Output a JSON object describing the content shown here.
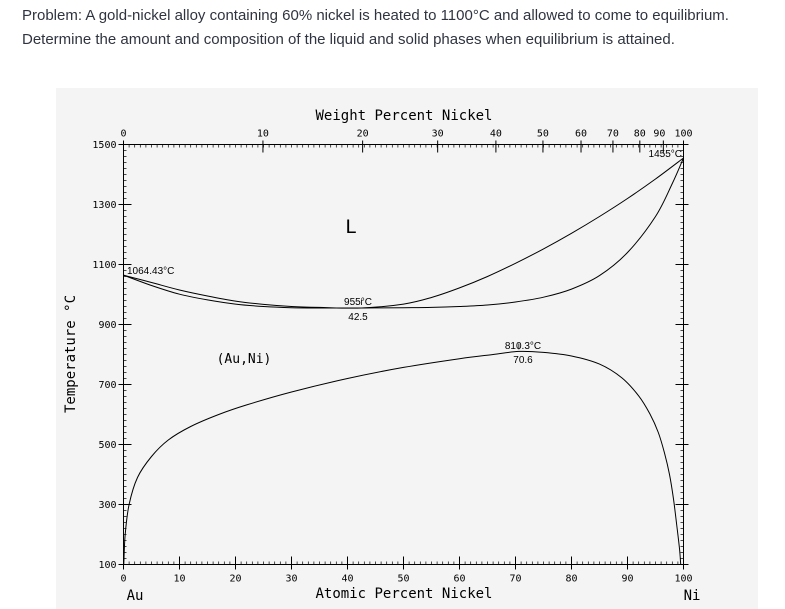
{
  "problem": {
    "line1": "Problem: A gold-nickel alloy containing 60% nickel is heated to 1100°C and allowed to come to equilibrium.",
    "line2": "Determine the amount and composition of the liquid and solid phases when equilibrium is attained."
  },
  "chart_data": {
    "type": "phase-diagram",
    "title": "Weight Percent Nickel",
    "xlabel": "Atomic Percent Nickel",
    "ylabel": "Temperature °C",
    "x_ticks_atomic": [
      "0",
      "10",
      "20",
      "30",
      "40",
      "50",
      "60",
      "70",
      "80",
      "90",
      "100"
    ],
    "x_ticks_weight": [
      "0",
      "10",
      "20",
      "30",
      "40",
      "50",
      "60",
      "70",
      "80",
      "90",
      "100"
    ],
    "x_ticks_weight_at": [
      0,
      24.9,
      42.7,
      56.1,
      66.5,
      74.9,
      81.7,
      87.4,
      92.2,
      96.4,
      100
    ],
    "y_ticks": [
      "1500",
      "1300",
      "1100",
      "900",
      "700",
      "500",
      "300",
      "100"
    ],
    "xlim": [
      0,
      100
    ],
    "ylim": [
      100,
      1500
    ],
    "endpoint_left": "Au",
    "endpoint_right": "Ni",
    "phase_labels": {
      "liquid": "L",
      "solid": "(Au,Ni)"
    },
    "annotations": {
      "au_melting": "1064.43°C",
      "ni_melting": "1455°C",
      "minimum_temp": "955°C",
      "minimum_comp": "42.5",
      "gap_max_temp": "810.3°C",
      "gap_max_comp": "70.6"
    },
    "series": [
      {
        "name": "liquidus",
        "points": [
          [
            0,
            1064.43
          ],
          [
            5,
            1040
          ],
          [
            10,
            1015
          ],
          [
            15,
            995
          ],
          [
            20,
            978
          ],
          [
            25,
            967
          ],
          [
            30,
            960
          ],
          [
            35,
            957
          ],
          [
            42.5,
            955
          ],
          [
            50,
            968
          ],
          [
            55,
            990
          ],
          [
            60,
            1022
          ],
          [
            65,
            1060
          ],
          [
            70,
            1104
          ],
          [
            75,
            1152
          ],
          [
            80,
            1204
          ],
          [
            85,
            1260
          ],
          [
            90,
            1320
          ],
          [
            95,
            1385
          ],
          [
            100,
            1455
          ]
        ]
      },
      {
        "name": "solidus",
        "points": [
          [
            0,
            1064.43
          ],
          [
            5,
            1030
          ],
          [
            10,
            1001
          ],
          [
            15,
            982
          ],
          [
            20,
            968
          ],
          [
            25,
            960
          ],
          [
            30,
            956
          ],
          [
            35,
            955
          ],
          [
            42.5,
            955
          ],
          [
            50,
            956
          ],
          [
            55,
            957
          ],
          [
            60,
            960
          ],
          [
            65,
            965
          ],
          [
            70,
            975
          ],
          [
            75,
            991
          ],
          [
            80,
            1018
          ],
          [
            85,
            1063
          ],
          [
            90,
            1140
          ],
          [
            95,
            1260
          ],
          [
            98,
            1370
          ],
          [
            100,
            1455
          ]
        ]
      },
      {
        "name": "miscibility-gap",
        "points": [
          [
            0.05,
            100
          ],
          [
            0.3,
            200
          ],
          [
            1,
            300
          ],
          [
            2.5,
            390
          ],
          [
            5,
            460
          ],
          [
            8,
            515
          ],
          [
            12,
            560
          ],
          [
            17,
            600
          ],
          [
            22,
            632
          ],
          [
            30,
            675
          ],
          [
            40,
            720
          ],
          [
            50,
            757
          ],
          [
            60,
            786
          ],
          [
            66,
            800
          ],
          [
            70.6,
            810.3
          ],
          [
            75,
            807
          ],
          [
            80,
            795
          ],
          [
            85,
            768
          ],
          [
            89,
            722
          ],
          [
            92,
            662
          ],
          [
            94,
            602
          ],
          [
            95.5,
            540
          ],
          [
            96.6,
            472
          ],
          [
            97.5,
            400
          ],
          [
            98.2,
            320
          ],
          [
            98.8,
            230
          ],
          [
            99.3,
            150
          ],
          [
            99.5,
            100
          ]
        ]
      }
    ]
  }
}
